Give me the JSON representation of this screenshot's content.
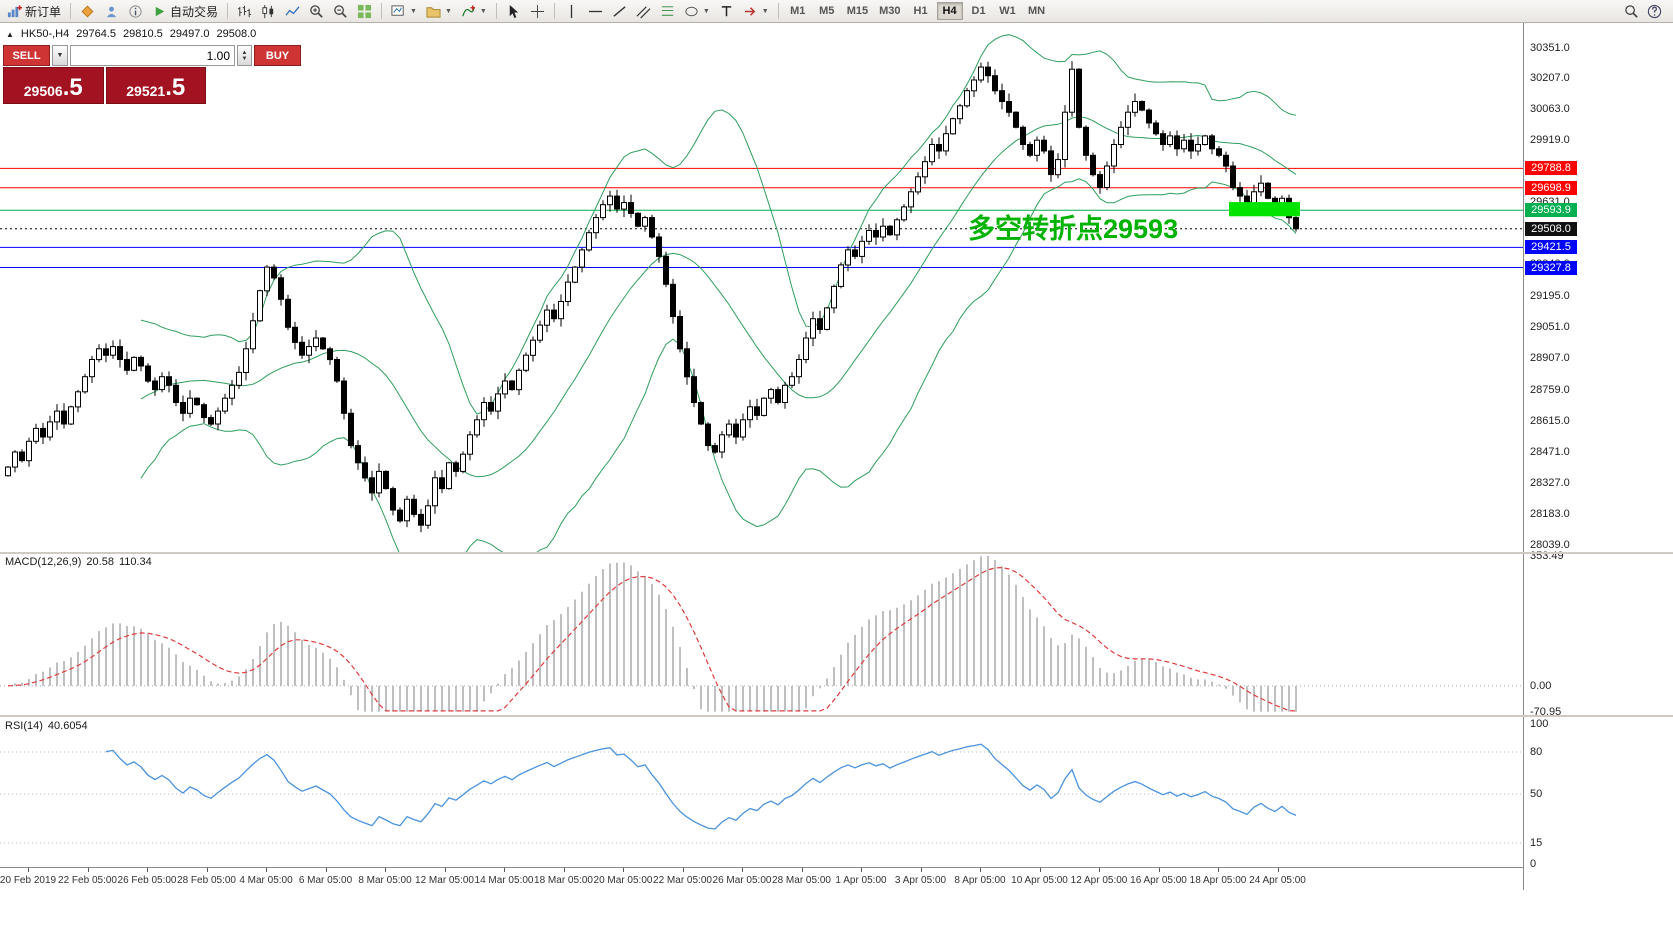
{
  "toolbar": {
    "new_order_label": "新订单",
    "autotrading_label": "自动交易",
    "timeframes": [
      "M1",
      "M5",
      "M15",
      "M30",
      "H1",
      "H4",
      "D1",
      "W1",
      "MN"
    ],
    "active_timeframe": "H4"
  },
  "glyphs": {
    "collapse_triangle": "▲",
    "chevron_down": "▼",
    "chevron_up": "▲"
  },
  "chart_info": {
    "symbol_period": "HK50-,H4",
    "open": "29764.5",
    "high": "29810.5",
    "low": "29497.0",
    "close": "29508.0"
  },
  "one_click": {
    "sell_label": "SELL",
    "buy_label": "BUY",
    "volume": "1.00",
    "sell_price_main": "29506",
    "sell_price_frac": ".5",
    "buy_price_main": "29521",
    "buy_price_frac": ".5"
  },
  "annotation": {
    "text": "多空转折点29593",
    "color": "#00b300"
  },
  "highlight": {
    "from_index": 175,
    "to_index": 184,
    "price_top": 29632,
    "price_bottom": 29566,
    "color": "#00e400"
  },
  "levels": [
    {
      "price": "29788.8",
      "color": "#ff0000",
      "style": "solid"
    },
    {
      "price": "29698.9",
      "color": "#ff0000",
      "style": "solid"
    },
    {
      "price": "29593.9",
      "color": "#00b050",
      "style": "solid"
    },
    {
      "price": "29508.0",
      "color": "#000000",
      "style": "dot"
    },
    {
      "price": "29421.5",
      "color": "#0000ff",
      "style": "solid"
    },
    {
      "price": "29327.8",
      "color": "#0000ff",
      "style": "solid"
    }
  ],
  "price_axis": {
    "labels": [
      "30351.0",
      "30207.0",
      "30063.0",
      "29919.0",
      "29775.0",
      "29631.0",
      "29487.0",
      "29343.0",
      "29195.0",
      "29051.0",
      "28907.0",
      "28759.0",
      "28615.0",
      "28471.0",
      "28327.0",
      "28183.0",
      "28039.0"
    ]
  },
  "macd": {
    "label": "MACD(12,26,9)",
    "values": [
      "20.58",
      "110.34"
    ],
    "scale": [
      "353.49",
      "0.00",
      "-70.95"
    ]
  },
  "rsi": {
    "label": "RSI(14)",
    "value": "40.6054",
    "scale": [
      "100",
      "80",
      "50",
      "15",
      "0"
    ]
  },
  "time_axis": [
    "20 Feb 2019",
    "22 Feb 05:00",
    "26 Feb 05:00",
    "28 Feb 05:00",
    "4 Mar 05:00",
    "6 Mar 05:00",
    "8 Mar 05:00",
    "12 Mar 05:00",
    "14 Mar 05:00",
    "18 Mar 05:00",
    "20 Mar 05:00",
    "22 Mar 05:00",
    "26 Mar 05:00",
    "28 Mar 05:00",
    "1 Apr 05:00",
    "3 Apr 05:00",
    "8 Apr 05:00",
    "10 Apr 05:00",
    "12 Apr 05:00",
    "16 Apr 05:00",
    "18 Apr 05:00",
    "24 Apr 05:00"
  ],
  "colors": {
    "bollinger": "#2e9e5e",
    "macd_hist": "#bfbfbf",
    "macd_signal": "#e03c3c",
    "rsi_line": "#4a94dd",
    "bull": "#ffffff",
    "bear": "#000000"
  },
  "chart_data": {
    "type": "candlestick",
    "symbol": "HK50-",
    "timeframe": "H4",
    "date_range": [
      "20 Feb 2019",
      "24 Apr 2019"
    ],
    "price_axis_visible_range": [
      28039,
      30351
    ],
    "indicators": [
      {
        "name": "Bollinger Bands",
        "period": 20,
        "deviation": 2
      },
      {
        "name": "MACD",
        "params": [
          12,
          26,
          9
        ],
        "current_values": [
          20.58,
          110.34
        ]
      },
      {
        "name": "RSI",
        "period": 14,
        "current_value": 40.6054
      }
    ],
    "current_bar_ohlc": {
      "open": 29764.5,
      "high": 29810.5,
      "low": 29497.0,
      "close": 29508.0
    },
    "closes": [
      28400,
      28470,
      28430,
      28520,
      28580,
      28540,
      28610,
      28660,
      28600,
      28680,
      28750,
      28820,
      28900,
      28950,
      28920,
      28960,
      28900,
      28850,
      28910,
      28870,
      28800,
      28760,
      28820,
      28780,
      28700,
      28650,
      28720,
      28690,
      28630,
      28600,
      28660,
      28720,
      28780,
      28840,
      28950,
      29080,
      29220,
      29330,
      29280,
      29180,
      29050,
      28980,
      28920,
      28960,
      29000,
      28950,
      28900,
      28800,
      28650,
      28500,
      28420,
      28350,
      28280,
      28380,
      28300,
      28200,
      28150,
      28250,
      28180,
      28130,
      28220,
      28350,
      28300,
      28420,
      28380,
      28460,
      28550,
      28620,
      28700,
      28660,
      28740,
      28800,
      28760,
      28850,
      28920,
      28990,
      29060,
      29130,
      29090,
      29170,
      29260,
      29330,
      29410,
      29490,
      29560,
      29620,
      29660,
      29600,
      29630,
      29580,
      29520,
      29560,
      29470,
      29380,
      29250,
      29100,
      28950,
      28820,
      28700,
      28600,
      28500,
      28470,
      28550,
      28600,
      28540,
      28620,
      28680,
      28640,
      28720,
      28760,
      28700,
      28780,
      28820,
      28900,
      29000,
      29090,
      29040,
      29140,
      29240,
      29340,
      29410,
      29380,
      29450,
      29500,
      29470,
      29520,
      29480,
      29550,
      29610,
      29680,
      29750,
      29820,
      29900,
      29870,
      29950,
      30020,
      30080,
      30150,
      30200,
      30260,
      30220,
      30150,
      30100,
      30050,
      29980,
      29900,
      29850,
      29920,
      29870,
      29760,
      29830,
      30050,
      30250,
      29980,
      29850,
      29760,
      29700,
      29800,
      29900,
      29980,
      30050,
      30100,
      30060,
      30000,
      29950,
      29900,
      29940,
      29880,
      29920,
      29870,
      29900,
      29940,
      29880,
      29850,
      29800,
      29700,
      29660,
      29610,
      29680,
      29720,
      29650,
      29600,
      29650,
      29560,
      29508
    ]
  }
}
